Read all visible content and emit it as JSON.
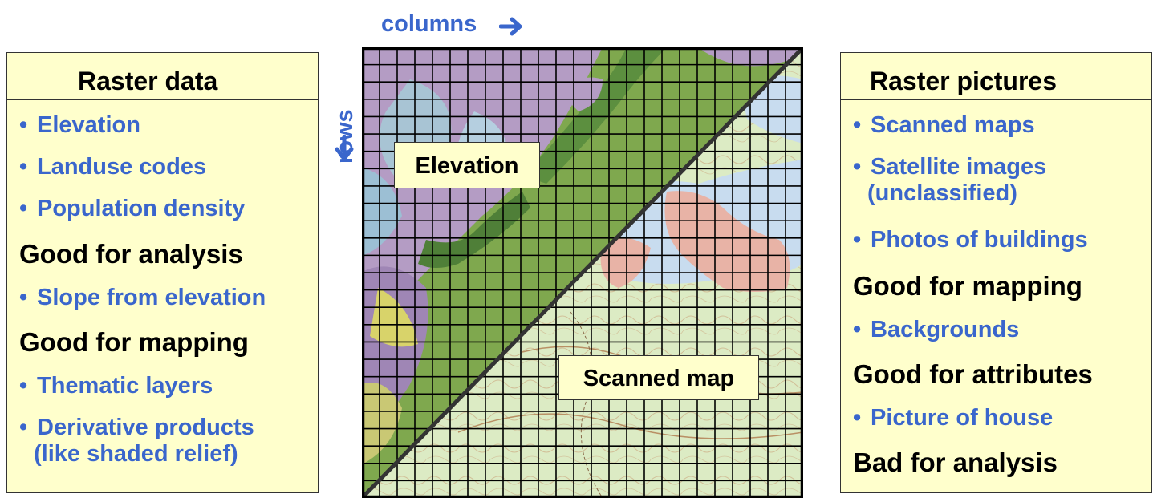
{
  "axes": {
    "columns_label": "columns",
    "rows_label": "rows"
  },
  "left_panel": {
    "title": "Raster data",
    "items": [
      {
        "kind": "bullet",
        "text": "Elevation"
      },
      {
        "kind": "bullet",
        "text": "Landuse codes"
      },
      {
        "kind": "bullet",
        "text": "Population density"
      },
      {
        "kind": "heading",
        "text": "Good for analysis"
      },
      {
        "kind": "bullet",
        "text": "Slope from elevation"
      },
      {
        "kind": "heading",
        "text": "Good for mapping"
      },
      {
        "kind": "bullet",
        "text": "Thematic layers"
      },
      {
        "kind": "bullet",
        "text": "Derivative products",
        "cont": "(like shaded relief)"
      }
    ]
  },
  "right_panel": {
    "title": "Raster pictures",
    "items": [
      {
        "kind": "bullet",
        "text": "Scanned maps"
      },
      {
        "kind": "bullet",
        "text": "Satellite images",
        "cont": "(unclassified)"
      },
      {
        "kind": "bullet",
        "text": "Photos of buildings"
      },
      {
        "kind": "heading",
        "text": "Good for mapping"
      },
      {
        "kind": "bullet",
        "text": "Backgrounds"
      },
      {
        "kind": "heading",
        "text": "Good for attributes"
      },
      {
        "kind": "bullet",
        "text": "Picture of house"
      },
      {
        "kind": "heading",
        "text": "Bad for analysis"
      }
    ]
  },
  "map": {
    "elevation_label": "Elevation",
    "scanned_label": "Scanned map"
  },
  "colors": {
    "panel_fill": "#ffffcc",
    "bullet_text": "#3a66cc",
    "arrow": "#3a66cc"
  }
}
